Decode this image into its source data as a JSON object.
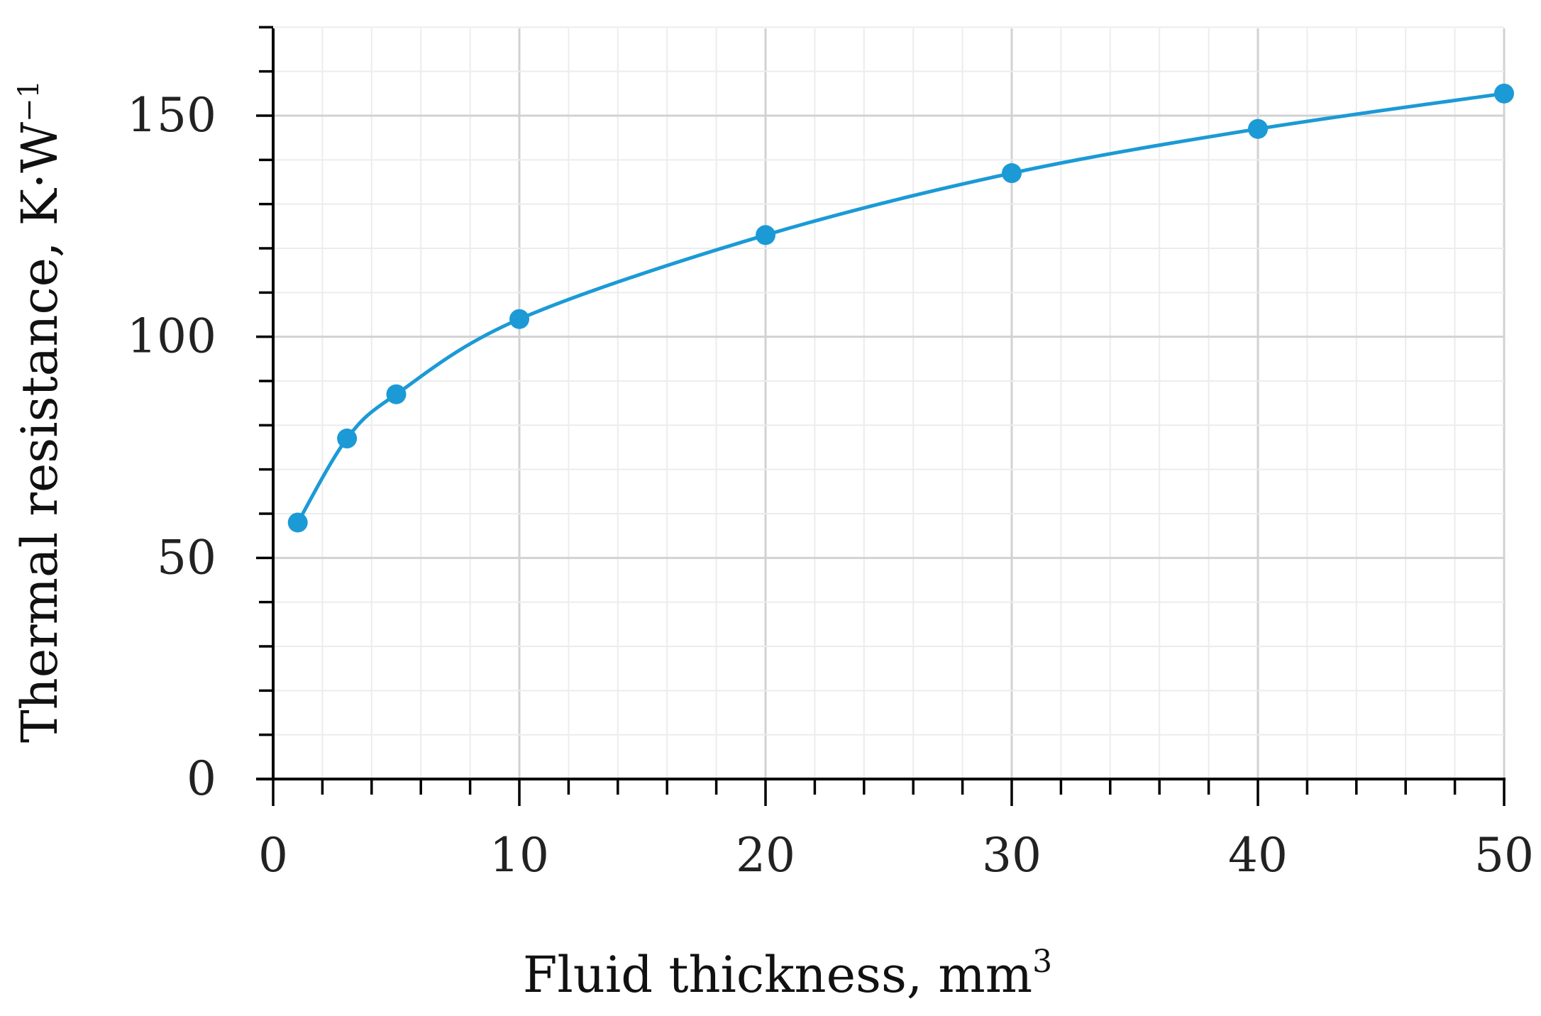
{
  "chart_data": {
    "type": "line",
    "xlabel": "Fluid thickness, mm",
    "xlabel_sup": "3",
    "ylabel": "Thermal resistance,  K·W",
    "ylabel_sup": "−1",
    "xlim": [
      0,
      50
    ],
    "ylim": [
      0,
      170
    ],
    "x_ticks": [
      0,
      10,
      20,
      30,
      40,
      50
    ],
    "x_tick_labels": [
      "0",
      "10",
      "20",
      "30",
      "40",
      "50"
    ],
    "y_ticks": [
      0,
      50,
      100,
      150
    ],
    "y_tick_labels": [
      "0",
      "50",
      "100",
      "150"
    ],
    "x_minor_step": 2,
    "y_minor_step": 10,
    "grid": true,
    "series": [
      {
        "color": "#1b9ad6",
        "smooth": true,
        "markers": true,
        "x": [
          1,
          3,
          5,
          10,
          20,
          30,
          40,
          50
        ],
        "y": [
          58,
          77,
          87,
          104,
          123,
          137,
          147,
          155
        ]
      }
    ]
  }
}
